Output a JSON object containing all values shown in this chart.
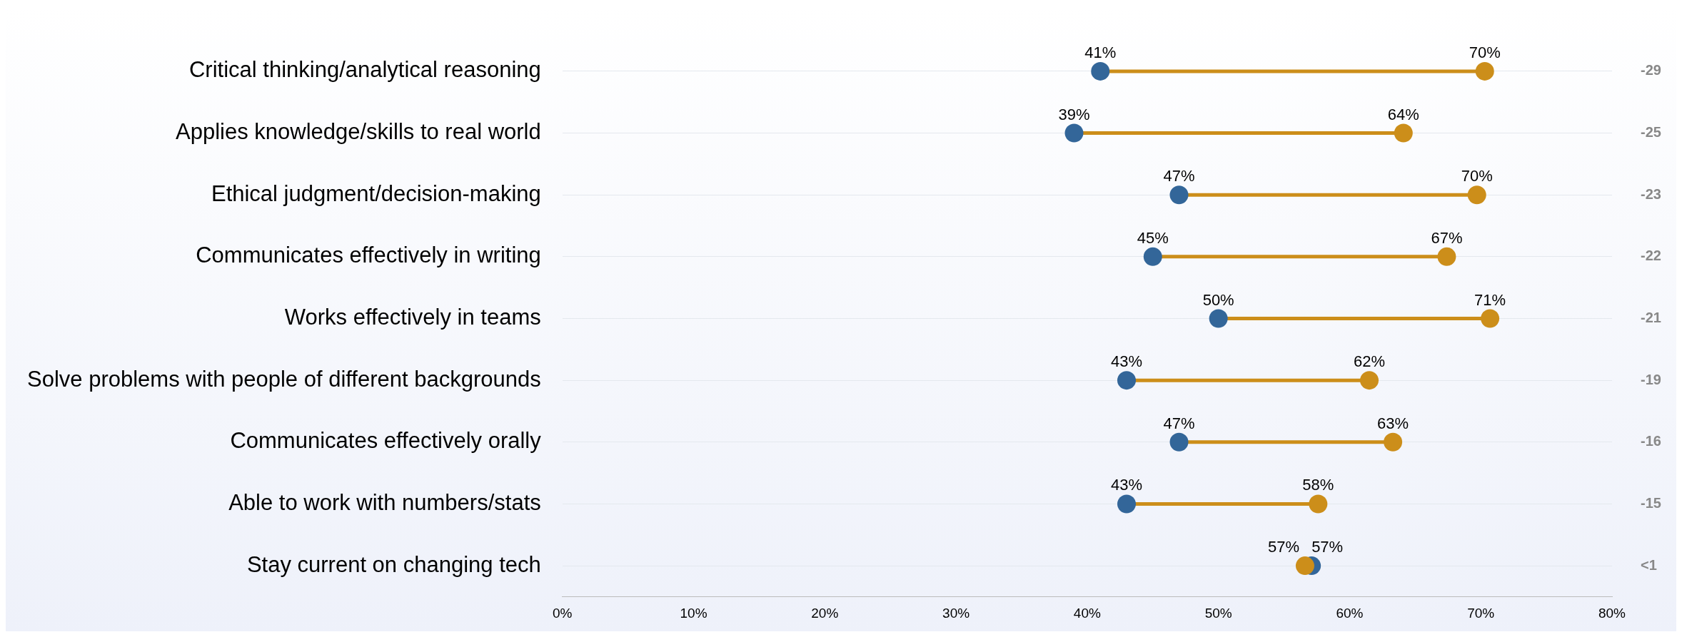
{
  "chart_data": {
    "type": "scatter",
    "orientation": "horizontal",
    "categories": [
      "Critical thinking/analytical reasoning",
      "Applies knowledge/skills to real world",
      "Ethical judgment/decision-making",
      "Communicates effectively in writing",
      "Works effectively in teams",
      "Solve problems with people of different backgrounds",
      "Communicates effectively orally",
      "Able to work with numbers/stats",
      "Stay current on changing tech"
    ],
    "series": [
      {
        "color": "#336699",
        "values": [
          41,
          39,
          47,
          45,
          50,
          43,
          47,
          43,
          57.1
        ],
        "value_labels": [
          "41%",
          "39%",
          "47%",
          "45%",
          "50%",
          "43%",
          "47%",
          "43%",
          "57%"
        ]
      },
      {
        "color": "#cc8e1a",
        "values": [
          70.3,
          64.1,
          69.7,
          67.4,
          70.7,
          61.5,
          63.3,
          57.6,
          56.6
        ],
        "value_labels": [
          "70%",
          "64%",
          "70%",
          "67%",
          "71%",
          "62%",
          "63%",
          "58%",
          "57%"
        ]
      }
    ],
    "xlim": [
      0,
      80
    ],
    "xticks": [
      {
        "value": 0,
        "label": "0%"
      },
      {
        "value": 10,
        "label": "10%"
      },
      {
        "value": 20,
        "label": "20%"
      },
      {
        "value": 30,
        "label": "30%"
      },
      {
        "value": 40,
        "label": "40%"
      },
      {
        "value": 50,
        "label": "50%"
      },
      {
        "value": 60,
        "label": "60%"
      },
      {
        "value": 70,
        "label": "70%"
      },
      {
        "value": 80,
        "label": "80%"
      }
    ],
    "annotations": [
      "-29",
      "-25",
      "-23",
      "-22",
      "-21",
      "-19",
      "-16",
      "-15",
      "<1"
    ],
    "grid": "y",
    "legend": false,
    "marker": "circle"
  }
}
